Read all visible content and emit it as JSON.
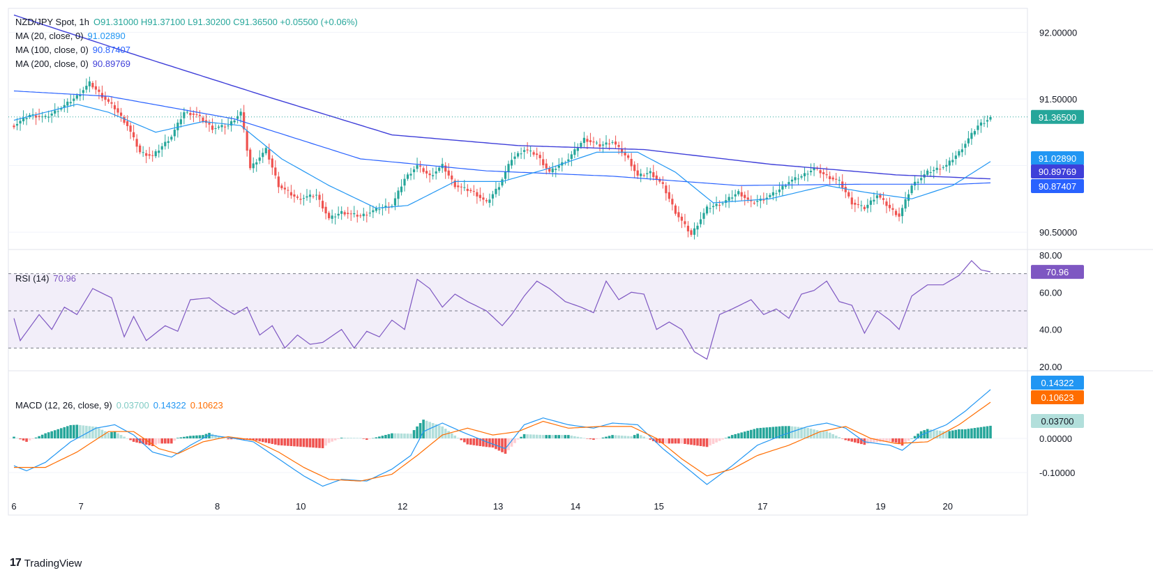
{
  "header": {
    "symbol": "NZD/JPY Spot, 1h",
    "ohlc": "O91.31000  H91.37100  L91.30200  C91.36500  +0.05500 (+0.06%)",
    "ma20_label": "MA (20, close, 0)",
    "ma20_value": "91.02890",
    "ma100_label": "MA (100, close, 0)",
    "ma100_value": "90.87407",
    "ma200_label": "MA (200, close, 0)",
    "ma200_value": "90.89769"
  },
  "rsi_legend": {
    "label": "RSI (14)",
    "value": "70.96"
  },
  "macd_legend": {
    "label": "MACD (12, 26, close, 9)",
    "hist": "0.03700",
    "macd": "0.14322",
    "signal": "0.10623"
  },
  "footer": {
    "brand": "TradingView"
  },
  "colors": {
    "up": "#26a69a",
    "down": "#ef5350",
    "ma20": "#2196f3",
    "ma100": "#2962ff",
    "ma200": "#3f3fd9",
    "rsi": "#7e57c2",
    "macd": "#2196f3",
    "signal": "#ff6d00",
    "hist_up_strong": "#26a69a",
    "hist_up_weak": "#b2dfdb",
    "hist_down_strong": "#ef5350",
    "hist_down_weak": "#ffcdd2"
  },
  "chart_data": [
    {
      "type": "candlestick",
      "title": "NZD/JPY Spot, 1h",
      "x_ticks": [
        "6",
        "7",
        "8",
        "10",
        "12",
        "13",
        "14",
        "15",
        "17",
        "19",
        "20"
      ],
      "y_ticks": [
        "92.00000",
        "91.50000",
        "90.50000"
      ],
      "ylim": [
        90.38,
        92.18
      ],
      "last_price": "91.36500",
      "price_labels": [
        "91.36500",
        "91.02890",
        "90.89769",
        "90.87407"
      ],
      "anchors": [
        {
          "t": 0,
          "p": 91.3
        },
        {
          "t": 5,
          "p": 91.38
        },
        {
          "t": 10,
          "p": 91.36
        },
        {
          "t": 16,
          "p": 91.45
        },
        {
          "t": 20,
          "p": 91.52
        },
        {
          "t": 24,
          "p": 91.62
        },
        {
          "t": 28,
          "p": 91.52
        },
        {
          "t": 32,
          "p": 91.43
        },
        {
          "t": 36,
          "p": 91.3
        },
        {
          "t": 40,
          "p": 91.1
        },
        {
          "t": 44,
          "p": 91.07
        },
        {
          "t": 50,
          "p": 91.22
        },
        {
          "t": 54,
          "p": 91.4
        },
        {
          "t": 58,
          "p": 91.38
        },
        {
          "t": 63,
          "p": 91.28
        },
        {
          "t": 68,
          "p": 91.3
        },
        {
          "t": 72,
          "p": 91.4
        },
        {
          "t": 75,
          "p": 90.98
        },
        {
          "t": 80,
          "p": 91.12
        },
        {
          "t": 84,
          "p": 90.85
        },
        {
          "t": 90,
          "p": 90.75
        },
        {
          "t": 96,
          "p": 90.78
        },
        {
          "t": 100,
          "p": 90.6
        },
        {
          "t": 104,
          "p": 90.65
        },
        {
          "t": 110,
          "p": 90.62
        },
        {
          "t": 116,
          "p": 90.68
        },
        {
          "t": 120,
          "p": 90.7
        },
        {
          "t": 124,
          "p": 90.9
        },
        {
          "t": 128,
          "p": 91.0
        },
        {
          "t": 132,
          "p": 90.92
        },
        {
          "t": 136,
          "p": 91.0
        },
        {
          "t": 140,
          "p": 90.85
        },
        {
          "t": 146,
          "p": 90.8
        },
        {
          "t": 150,
          "p": 90.72
        },
        {
          "t": 154,
          "p": 90.85
        },
        {
          "t": 158,
          "p": 91.05
        },
        {
          "t": 162,
          "p": 91.12
        },
        {
          "t": 166,
          "p": 91.08
        },
        {
          "t": 170,
          "p": 90.95
        },
        {
          "t": 176,
          "p": 91.05
        },
        {
          "t": 181,
          "p": 91.2
        },
        {
          "t": 186,
          "p": 91.15
        },
        {
          "t": 190,
          "p": 91.18
        },
        {
          "t": 195,
          "p": 91.05
        },
        {
          "t": 198,
          "p": 90.92
        },
        {
          "t": 202,
          "p": 90.95
        },
        {
          "t": 206,
          "p": 90.85
        },
        {
          "t": 210,
          "p": 90.65
        },
        {
          "t": 215,
          "p": 90.48
        },
        {
          "t": 220,
          "p": 90.68
        },
        {
          "t": 225,
          "p": 90.72
        },
        {
          "t": 230,
          "p": 90.8
        },
        {
          "t": 234,
          "p": 90.72
        },
        {
          "t": 238,
          "p": 90.75
        },
        {
          "t": 242,
          "p": 90.8
        },
        {
          "t": 246,
          "p": 90.88
        },
        {
          "t": 250,
          "p": 90.92
        },
        {
          "t": 254,
          "p": 90.98
        },
        {
          "t": 258,
          "p": 90.92
        },
        {
          "t": 262,
          "p": 90.88
        },
        {
          "t": 266,
          "p": 90.72
        },
        {
          "t": 270,
          "p": 90.68
        },
        {
          "t": 274,
          "p": 90.78
        },
        {
          "t": 278,
          "p": 90.68
        },
        {
          "t": 281,
          "p": 90.62
        },
        {
          "t": 285,
          "p": 90.85
        },
        {
          "t": 290,
          "p": 90.95
        },
        {
          "t": 296,
          "p": 91.0
        },
        {
          "t": 300,
          "p": 91.1
        },
        {
          "t": 303,
          "p": 91.2
        },
        {
          "t": 306,
          "p": 91.3
        },
        {
          "t": 310,
          "p": 91.36
        }
      ],
      "ma20": [
        {
          "t": 0,
          "p": 91.34
        },
        {
          "t": 20,
          "p": 91.46
        },
        {
          "t": 30,
          "p": 91.4
        },
        {
          "t": 45,
          "p": 91.25
        },
        {
          "t": 60,
          "p": 91.33
        },
        {
          "t": 72,
          "p": 91.3
        },
        {
          "t": 85,
          "p": 91.05
        },
        {
          "t": 100,
          "p": 90.85
        },
        {
          "t": 115,
          "p": 90.68
        },
        {
          "t": 125,
          "p": 90.7
        },
        {
          "t": 140,
          "p": 90.88
        },
        {
          "t": 155,
          "p": 90.88
        },
        {
          "t": 170,
          "p": 90.98
        },
        {
          "t": 185,
          "p": 91.1
        },
        {
          "t": 198,
          "p": 91.1
        },
        {
          "t": 210,
          "p": 90.95
        },
        {
          "t": 222,
          "p": 90.72
        },
        {
          "t": 240,
          "p": 90.75
        },
        {
          "t": 258,
          "p": 90.85
        },
        {
          "t": 270,
          "p": 90.8
        },
        {
          "t": 285,
          "p": 90.75
        },
        {
          "t": 298,
          "p": 90.85
        },
        {
          "t": 310,
          "p": 91.03
        }
      ],
      "ma100": [
        {
          "t": 0,
          "p": 91.56
        },
        {
          "t": 30,
          "p": 91.52
        },
        {
          "t": 70,
          "p": 91.35
        },
        {
          "t": 110,
          "p": 91.05
        },
        {
          "t": 150,
          "p": 90.96
        },
        {
          "t": 190,
          "p": 90.92
        },
        {
          "t": 230,
          "p": 90.85
        },
        {
          "t": 270,
          "p": 90.86
        },
        {
          "t": 300,
          "p": 90.86
        },
        {
          "t": 310,
          "p": 90.87
        }
      ],
      "ma200": [
        {
          "t": 0,
          "p": 92.13
        },
        {
          "t": 40,
          "p": 91.82
        },
        {
          "t": 80,
          "p": 91.52
        },
        {
          "t": 120,
          "p": 91.23
        },
        {
          "t": 160,
          "p": 91.15
        },
        {
          "t": 200,
          "p": 91.12
        },
        {
          "t": 240,
          "p": 91.01
        },
        {
          "t": 280,
          "p": 90.93
        },
        {
          "t": 310,
          "p": 90.9
        }
      ]
    },
    {
      "type": "line",
      "title": "RSI (14)",
      "y_ticks": [
        "80.00",
        "60.00",
        "40.00",
        "20.00"
      ],
      "ylim": [
        20,
        80
      ],
      "bands": [
        30,
        50,
        70
      ],
      "last_value": "70.96",
      "anchors": [
        {
          "t": 0,
          "p": 46
        },
        {
          "t": 2,
          "p": 34
        },
        {
          "t": 8,
          "p": 48
        },
        {
          "t": 12,
          "p": 40
        },
        {
          "t": 16,
          "p": 52
        },
        {
          "t": 20,
          "p": 48
        },
        {
          "t": 25,
          "p": 62
        },
        {
          "t": 31,
          "p": 57
        },
        {
          "t": 35,
          "p": 36
        },
        {
          "t": 38,
          "p": 47
        },
        {
          "t": 42,
          "p": 34
        },
        {
          "t": 48,
          "p": 42
        },
        {
          "t": 52,
          "p": 39
        },
        {
          "t": 56,
          "p": 56
        },
        {
          "t": 62,
          "p": 57
        },
        {
          "t": 66,
          "p": 52
        },
        {
          "t": 70,
          "p": 48
        },
        {
          "t": 74,
          "p": 52
        },
        {
          "t": 78,
          "p": 37
        },
        {
          "t": 82,
          "p": 42
        },
        {
          "t": 86,
          "p": 30
        },
        {
          "t": 90,
          "p": 37
        },
        {
          "t": 94,
          "p": 32
        },
        {
          "t": 98,
          "p": 33
        },
        {
          "t": 104,
          "p": 40
        },
        {
          "t": 108,
          "p": 30
        },
        {
          "t": 112,
          "p": 39
        },
        {
          "t": 116,
          "p": 36
        },
        {
          "t": 120,
          "p": 45
        },
        {
          "t": 124,
          "p": 40
        },
        {
          "t": 128,
          "p": 67
        },
        {
          "t": 132,
          "p": 62
        },
        {
          "t": 136,
          "p": 52
        },
        {
          "t": 140,
          "p": 59
        },
        {
          "t": 144,
          "p": 55
        },
        {
          "t": 150,
          "p": 50
        },
        {
          "t": 155,
          "p": 42
        },
        {
          "t": 158,
          "p": 48
        },
        {
          "t": 162,
          "p": 58
        },
        {
          "t": 166,
          "p": 66
        },
        {
          "t": 170,
          "p": 62
        },
        {
          "t": 175,
          "p": 55
        },
        {
          "t": 180,
          "p": 52
        },
        {
          "t": 184,
          "p": 49
        },
        {
          "t": 188,
          "p": 66
        },
        {
          "t": 192,
          "p": 56
        },
        {
          "t": 196,
          "p": 60
        },
        {
          "t": 200,
          "p": 59
        },
        {
          "t": 204,
          "p": 40
        },
        {
          "t": 208,
          "p": 44
        },
        {
          "t": 212,
          "p": 40
        },
        {
          "t": 216,
          "p": 28
        },
        {
          "t": 220,
          "p": 24
        },
        {
          "t": 224,
          "p": 48
        },
        {
          "t": 228,
          "p": 51
        },
        {
          "t": 234,
          "p": 56
        },
        {
          "t": 238,
          "p": 48
        },
        {
          "t": 242,
          "p": 51
        },
        {
          "t": 246,
          "p": 46
        },
        {
          "t": 250,
          "p": 59
        },
        {
          "t": 254,
          "p": 61
        },
        {
          "t": 258,
          "p": 66
        },
        {
          "t": 262,
          "p": 55
        },
        {
          "t": 266,
          "p": 53
        },
        {
          "t": 270,
          "p": 38
        },
        {
          "t": 274,
          "p": 50
        },
        {
          "t": 278,
          "p": 45
        },
        {
          "t": 281,
          "p": 40
        },
        {
          "t": 285,
          "p": 58
        },
        {
          "t": 290,
          "p": 64
        },
        {
          "t": 295,
          "p": 64
        },
        {
          "t": 300,
          "p": 69
        },
        {
          "t": 304,
          "p": 77
        },
        {
          "t": 307,
          "p": 72
        },
        {
          "t": 310,
          "p": 71
        }
      ]
    },
    {
      "type": "bar+line",
      "title": "MACD (12, 26, close, 9)",
      "y_ticks": [
        "0.00000",
        "-0.10000"
      ],
      "ylim": [
        -0.145,
        0.19
      ],
      "last_values": {
        "macd": "0.14322",
        "signal": "0.10623",
        "hist": "0.03700"
      },
      "macd": [
        {
          "t": 0,
          "p": -0.08
        },
        {
          "t": 4,
          "p": -0.095
        },
        {
          "t": 10,
          "p": -0.07
        },
        {
          "t": 18,
          "p": -0.01
        },
        {
          "t": 26,
          "p": 0.03
        },
        {
          "t": 32,
          "p": 0.04
        },
        {
          "t": 38,
          "p": 0.01
        },
        {
          "t": 44,
          "p": -0.04
        },
        {
          "t": 50,
          "p": -0.055
        },
        {
          "t": 56,
          "p": -0.02
        },
        {
          "t": 62,
          "p": 0.01
        },
        {
          "t": 70,
          "p": 0.0
        },
        {
          "t": 76,
          "p": -0.01
        },
        {
          "t": 84,
          "p": -0.06
        },
        {
          "t": 92,
          "p": -0.11
        },
        {
          "t": 98,
          "p": -0.14
        },
        {
          "t": 104,
          "p": -0.12
        },
        {
          "t": 112,
          "p": -0.125
        },
        {
          "t": 120,
          "p": -0.09
        },
        {
          "t": 126,
          "p": -0.05
        },
        {
          "t": 130,
          "p": 0.02
        },
        {
          "t": 136,
          "p": 0.045
        },
        {
          "t": 142,
          "p": 0.02
        },
        {
          "t": 150,
          "p": -0.01
        },
        {
          "t": 156,
          "p": -0.03
        },
        {
          "t": 162,
          "p": 0.04
        },
        {
          "t": 168,
          "p": 0.06
        },
        {
          "t": 176,
          "p": 0.04
        },
        {
          "t": 184,
          "p": 0.03
        },
        {
          "t": 190,
          "p": 0.045
        },
        {
          "t": 198,
          "p": 0.04
        },
        {
          "t": 206,
          "p": -0.03
        },
        {
          "t": 214,
          "p": -0.09
        },
        {
          "t": 220,
          "p": -0.135
        },
        {
          "t": 228,
          "p": -0.08
        },
        {
          "t": 236,
          "p": -0.02
        },
        {
          "t": 244,
          "p": 0.01
        },
        {
          "t": 252,
          "p": 0.035
        },
        {
          "t": 258,
          "p": 0.045
        },
        {
          "t": 264,
          "p": 0.03
        },
        {
          "t": 270,
          "p": -0.01
        },
        {
          "t": 278,
          "p": -0.02
        },
        {
          "t": 282,
          "p": -0.035
        },
        {
          "t": 288,
          "p": 0.01
        },
        {
          "t": 296,
          "p": 0.04
        },
        {
          "t": 302,
          "p": 0.08
        },
        {
          "t": 310,
          "p": 0.143
        }
      ],
      "signal": [
        {
          "t": 0,
          "p": -0.085
        },
        {
          "t": 10,
          "p": -0.085
        },
        {
          "t": 20,
          "p": -0.04
        },
        {
          "t": 30,
          "p": 0.02
        },
        {
          "t": 38,
          "p": 0.02
        },
        {
          "t": 46,
          "p": -0.03
        },
        {
          "t": 52,
          "p": -0.045
        },
        {
          "t": 60,
          "p": -0.01
        },
        {
          "t": 68,
          "p": 0.005
        },
        {
          "t": 76,
          "p": -0.005
        },
        {
          "t": 84,
          "p": -0.04
        },
        {
          "t": 92,
          "p": -0.085
        },
        {
          "t": 100,
          "p": -0.12
        },
        {
          "t": 110,
          "p": -0.125
        },
        {
          "t": 120,
          "p": -0.105
        },
        {
          "t": 128,
          "p": -0.05
        },
        {
          "t": 136,
          "p": 0.01
        },
        {
          "t": 144,
          "p": 0.03
        },
        {
          "t": 152,
          "p": 0.01
        },
        {
          "t": 160,
          "p": 0.02
        },
        {
          "t": 168,
          "p": 0.05
        },
        {
          "t": 176,
          "p": 0.03
        },
        {
          "t": 186,
          "p": 0.035
        },
        {
          "t": 196,
          "p": 0.035
        },
        {
          "t": 204,
          "p": 0.0
        },
        {
          "t": 212,
          "p": -0.06
        },
        {
          "t": 220,
          "p": -0.11
        },
        {
          "t": 228,
          "p": -0.09
        },
        {
          "t": 236,
          "p": -0.05
        },
        {
          "t": 246,
          "p": -0.02
        },
        {
          "t": 256,
          "p": 0.02
        },
        {
          "t": 264,
          "p": 0.035
        },
        {
          "t": 272,
          "p": 0.0
        },
        {
          "t": 280,
          "p": -0.015
        },
        {
          "t": 290,
          "p": -0.01
        },
        {
          "t": 300,
          "p": 0.04
        },
        {
          "t": 310,
          "p": 0.106
        }
      ]
    }
  ]
}
